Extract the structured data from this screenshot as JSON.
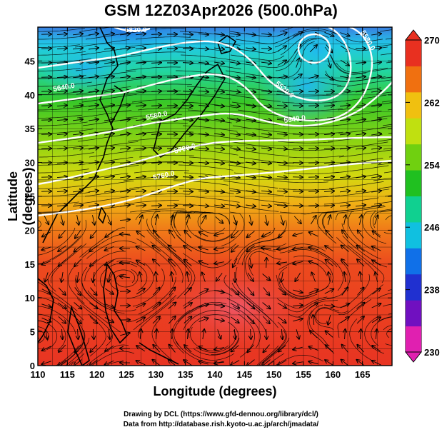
{
  "title": "GSM 12Z03Apr2026 (500.0hPa)",
  "x_axis": {
    "label": "Longitude (degrees)",
    "ticks": [
      "110",
      "115",
      "120",
      "125",
      "130",
      "135",
      "140",
      "145",
      "150",
      "155",
      "160",
      "165"
    ],
    "range": [
      110,
      170
    ]
  },
  "y_axis": {
    "label": "Latitude  (degrees)",
    "ticks": [
      "0",
      "5",
      "10",
      "15",
      "20",
      "25",
      "30",
      "35",
      "40",
      "45"
    ],
    "range": [
      0,
      50
    ]
  },
  "colorbar": {
    "ticks": [
      "230",
      "238",
      "246",
      "254",
      "262",
      "270"
    ],
    "range": [
      230,
      270
    ],
    "colors": [
      "#e020b0",
      "#7010c0",
      "#2030d0",
      "#1070e8",
      "#10c0e0",
      "#10d090",
      "#20c020",
      "#70d010",
      "#c0e010",
      "#f0c010",
      "#f07010",
      "#e83020"
    ]
  },
  "contour_labels": [
    "5640.0",
    "5700.0",
    "5760.0",
    "5820.0",
    "5580.0",
    "5640.0",
    "5520.0",
    "5580.0"
  ],
  "credits": {
    "line1": "Drawing by DCL (https://www.gfd-dennou.org/library/dcl/)",
    "line2": "Data from http://database.rish.kyoto-u.ac.jp/arch/jmadata/"
  }
}
